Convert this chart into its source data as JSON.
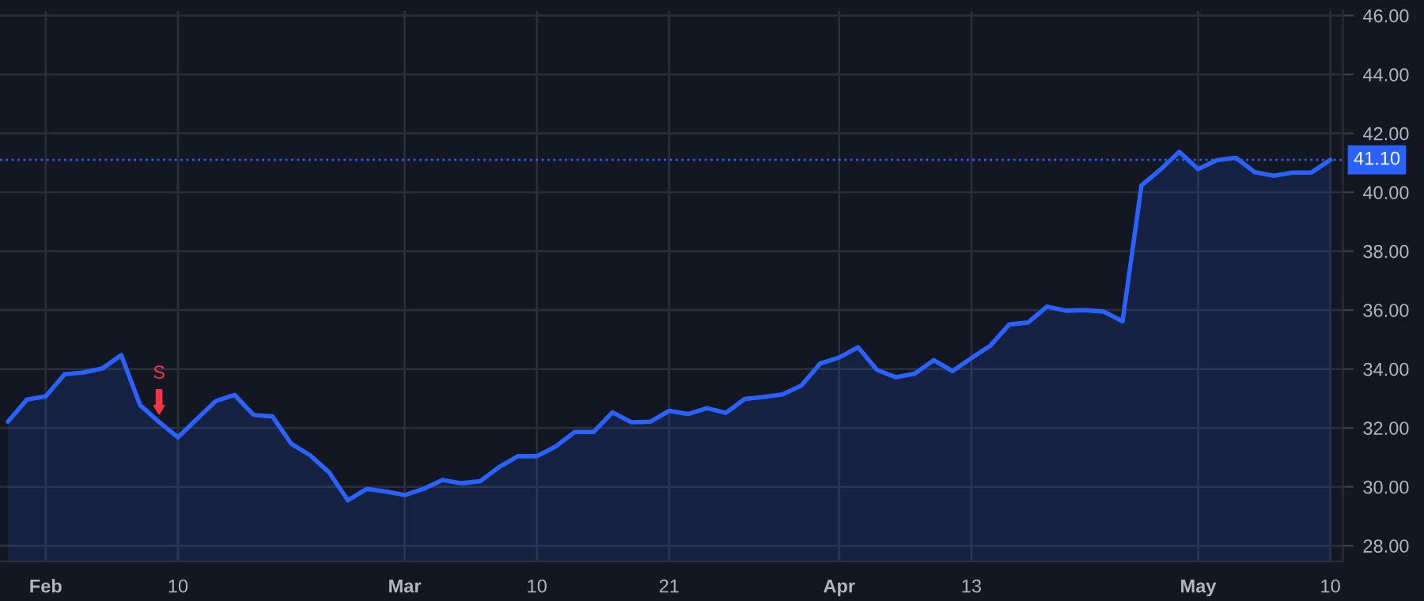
{
  "chart_data": {
    "type": "area",
    "categories": [
      null,
      null,
      "Feb",
      null,
      null,
      null,
      null,
      null,
      null,
      "10",
      null,
      null,
      null,
      null,
      null,
      null,
      null,
      null,
      null,
      null,
      null,
      "Mar",
      null,
      null,
      null,
      null,
      null,
      null,
      "10",
      null,
      null,
      null,
      null,
      null,
      null,
      "21",
      null,
      null,
      null,
      null,
      null,
      null,
      null,
      null,
      "Apr",
      null,
      null,
      null,
      null,
      null,
      null,
      "13",
      null,
      null,
      null,
      null,
      null,
      null,
      null,
      null,
      null,
      null,
      null,
      "May",
      null,
      null,
      null,
      null,
      null,
      null,
      "10"
    ],
    "series": [
      {
        "color": "#2962ff",
        "values": [
          32.21,
          32.96,
          33.07,
          33.82,
          33.88,
          34.02,
          34.47,
          32.77,
          32.2,
          31.68,
          32.3,
          32.91,
          33.12,
          32.44,
          32.39,
          31.46,
          31.07,
          30.49,
          29.54,
          29.93,
          29.84,
          29.72,
          29.93,
          30.23,
          30.12,
          30.19,
          30.67,
          31.04,
          31.04,
          31.37,
          31.86,
          31.86,
          32.53,
          32.19,
          32.21,
          32.58,
          32.47,
          32.67,
          32.51,
          32.98,
          33.05,
          33.14,
          33.44,
          34.19,
          34.39,
          34.74,
          33.97,
          33.72,
          33.84,
          34.3,
          33.93,
          34.37,
          34.79,
          35.51,
          35.58,
          36.12,
          35.98,
          36.0,
          35.95,
          35.62,
          40.23,
          40.77,
          41.37,
          40.79,
          41.09,
          41.17,
          40.68,
          40.56,
          40.67,
          40.67,
          41.1
        ]
      }
    ],
    "ylim": [
      27.47,
      46.16
    ],
    "yticks": [
      {
        "value": 28,
        "label": "28.00"
      },
      {
        "value": 30,
        "label": "30.00"
      },
      {
        "value": 32,
        "label": "32.00"
      },
      {
        "value": 34,
        "label": "34.00"
      },
      {
        "value": 36,
        "label": "36.00"
      },
      {
        "value": 38,
        "label": "38.00"
      },
      {
        "value": 40,
        "label": "40.00"
      },
      {
        "value": 42,
        "label": "42.00"
      },
      {
        "value": 44,
        "label": "44.00"
      },
      {
        "value": 46,
        "label": "46.00"
      }
    ],
    "ref_lines": [
      {
        "axis": "y",
        "value": 41.1,
        "label": "41.10",
        "color": "#2962ff",
        "line_style": "dotted"
      }
    ],
    "annotations": [
      {
        "text": "S",
        "y": 32.2
      }
    ],
    "grid": true,
    "legend": false
  }
}
